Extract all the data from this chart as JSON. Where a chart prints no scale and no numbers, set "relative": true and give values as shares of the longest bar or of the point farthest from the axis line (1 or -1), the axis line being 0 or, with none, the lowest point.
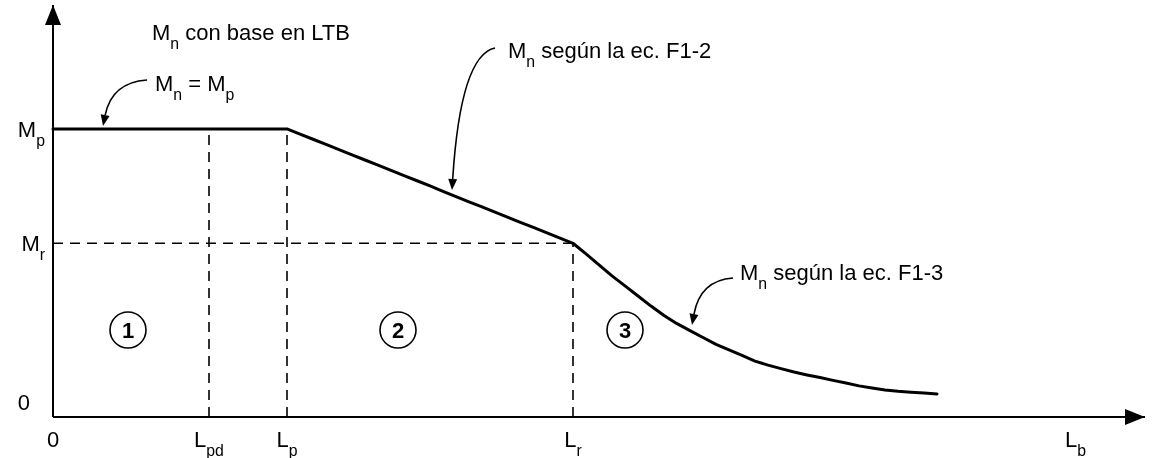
{
  "chart_data": {
    "type": "line",
    "title": "M$_{n}$ con base en LTB",
    "xlabel": "L$_{b}$",
    "relative": true,
    "categories": [
      "0",
      null,
      null,
      null,
      null,
      null,
      null,
      null,
      null,
      null,
      null,
      null,
      "L$_{pd}$",
      null,
      null,
      null,
      null,
      null,
      "L$_{p}$",
      null,
      null,
      null,
      null,
      null,
      null,
      null,
      null,
      null,
      null,
      null,
      null,
      null,
      null,
      null,
      null,
      null,
      null,
      null,
      null,
      null,
      "L$_{r}$",
      null,
      null,
      null,
      null,
      null,
      null,
      null,
      null,
      null,
      null,
      null,
      null,
      null,
      null,
      null,
      null,
      null,
      null,
      null,
      null,
      null,
      null,
      null,
      null,
      null,
      null,
      null,
      null,
      null,
      null,
      null,
      null,
      null,
      null,
      null,
      null,
      null,
      null,
      null,
      null,
      null,
      null,
      null,
      null
    ],
    "series": [
      {
        "color": "#000000",
        "values": [
          1,
          1,
          1,
          1,
          1,
          1,
          1,
          1,
          1,
          1,
          1,
          1,
          1,
          1,
          1,
          1,
          1,
          1,
          1,
          0.982,
          0.964,
          0.946,
          0.928,
          0.91,
          0.892,
          0.874,
          0.856,
          0.838,
          0.82,
          0.802,
          0.783,
          0.765,
          0.747,
          0.729,
          0.711,
          0.693,
          0.675,
          0.657,
          0.639,
          0.621,
          0.603,
          0.566,
          0.528,
          0.49,
          0.455,
          0.42,
          0.385,
          0.352,
          0.324,
          0.3,
          0.276,
          0.252,
          0.233,
          0.214,
          0.194,
          0.18,
          0.168,
          0.156,
          0.146,
          0.137,
          0.127,
          0.118,
          0.108,
          0.101,
          0.094,
          0.089,
          0.086,
          0.083,
          0.08,
          null,
          null,
          null,
          null,
          null,
          null,
          null,
          null,
          null,
          null,
          null,
          null,
          null,
          null,
          null,
          null
        ]
      }
    ],
    "ref_lines": [
      {
        "axis": "x",
        "value": "L$_{pd}$",
        "line_style": "dashed",
        "color": "#000000"
      },
      {
        "axis": "x",
        "value": "L$_{p}$",
        "line_style": "dashed",
        "color": "#000000"
      },
      {
        "axis": "x",
        "value": "L$_{r}$",
        "line_style": "dashed",
        "color": "#000000"
      },
      {
        "axis": "y",
        "value": 0.603,
        "label": "M$_{r}$",
        "line_style": "dashed",
        "color": "#000000"
      }
    ],
    "annotations": [
      "M$_{n}$ = M$_{p}$",
      "M$_{n}$ según la ec. F1-2",
      "M$_{n}$ según la ec. F1-3",
      "1",
      "2",
      "3",
      "M$_{p}$",
      "0"
    ]
  }
}
